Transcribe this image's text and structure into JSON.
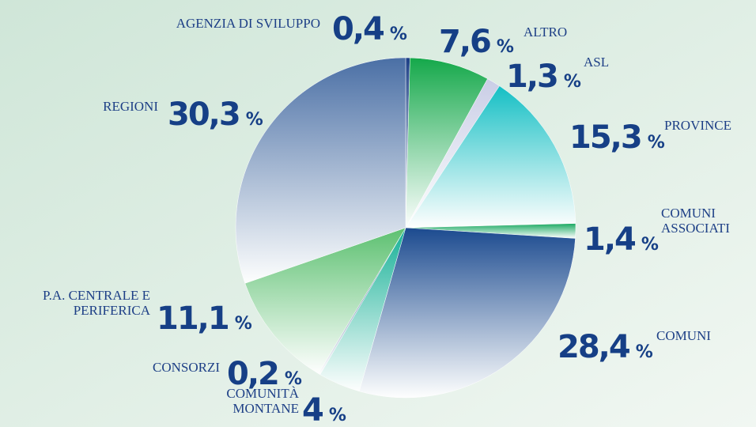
{
  "chart_data": {
    "type": "pie",
    "categories": [
      "AGENZIA DI SVILUPPO",
      "ALTRO",
      "ASL",
      "PROVINCE",
      "COMUNI\nASSOCIATI",
      "COMUNI",
      "COMUNITÀ\nMONTANE",
      "CONSORZI",
      "P.A. CENTRALE E\nPERIFERICA",
      "REGIONI"
    ],
    "values": [
      0.4,
      7.6,
      1.3,
      15.3,
      1.4,
      28.4,
      4,
      0.2,
      11.1,
      30.3
    ],
    "value_labels": [
      "0,4",
      "7,6",
      "1,3",
      "15,3",
      "1,4",
      "28,4",
      "4",
      "0,2",
      "11,1",
      "30,3"
    ],
    "unit": "%",
    "colors": [
      "#1c3f86",
      "#14a84a",
      "#c9cde6",
      "#14bfc4",
      "#18a860",
      "#1b4a8f",
      "#14b096",
      "#2c4f86",
      "#5cc070",
      "#4a6fa5"
    ]
  }
}
